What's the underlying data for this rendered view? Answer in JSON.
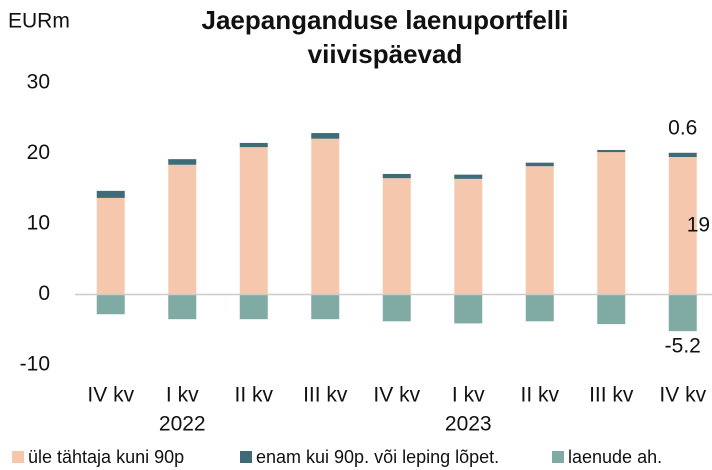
{
  "chart_data": {
    "type": "stacked_bar",
    "title": [
      "Jaepanganduse laenuportfelli",
      "viivispäevad"
    ],
    "y_label": "EURm",
    "categories": [
      "IV kv",
      "I kv",
      "II kv",
      "III kv",
      "IV kv",
      "I kv",
      "II kv",
      "III kv",
      "IV kv"
    ],
    "category_years": [
      null,
      "2022",
      null,
      null,
      null,
      "2023",
      null,
      null,
      null
    ],
    "series": [
      {
        "name": "üle tähtaja kuni 90p",
        "color": "#f5c8ae",
        "values": [
          13.7,
          18.4,
          20.9,
          22.1,
          16.5,
          16.4,
          18.2,
          20.2,
          19.5
        ],
        "value_labels": [
          null,
          null,
          null,
          null,
          null,
          null,
          null,
          null,
          "19.5"
        ]
      },
      {
        "name": "enam kui 90p. või leping lõpet.",
        "color": "#3f6b77",
        "values": [
          1.0,
          0.8,
          0.6,
          0.8,
          0.6,
          0.6,
          0.5,
          0.3,
          0.6
        ],
        "value_labels": [
          null,
          null,
          null,
          null,
          null,
          null,
          null,
          null,
          "0.6"
        ]
      },
      {
        "name": "laenude ah.",
        "color": "#80aaa4",
        "values": [
          -2.8,
          -3.5,
          -3.5,
          -3.5,
          -3.8,
          -4.1,
          -3.8,
          -4.2,
          -5.2
        ],
        "value_labels": [
          null,
          null,
          null,
          null,
          null,
          null,
          null,
          null,
          "-5.2"
        ]
      }
    ],
    "ylim": [
      -10,
      30
    ],
    "yticks": [
      -10,
      0,
      10,
      20,
      30
    ],
    "grid": false
  }
}
